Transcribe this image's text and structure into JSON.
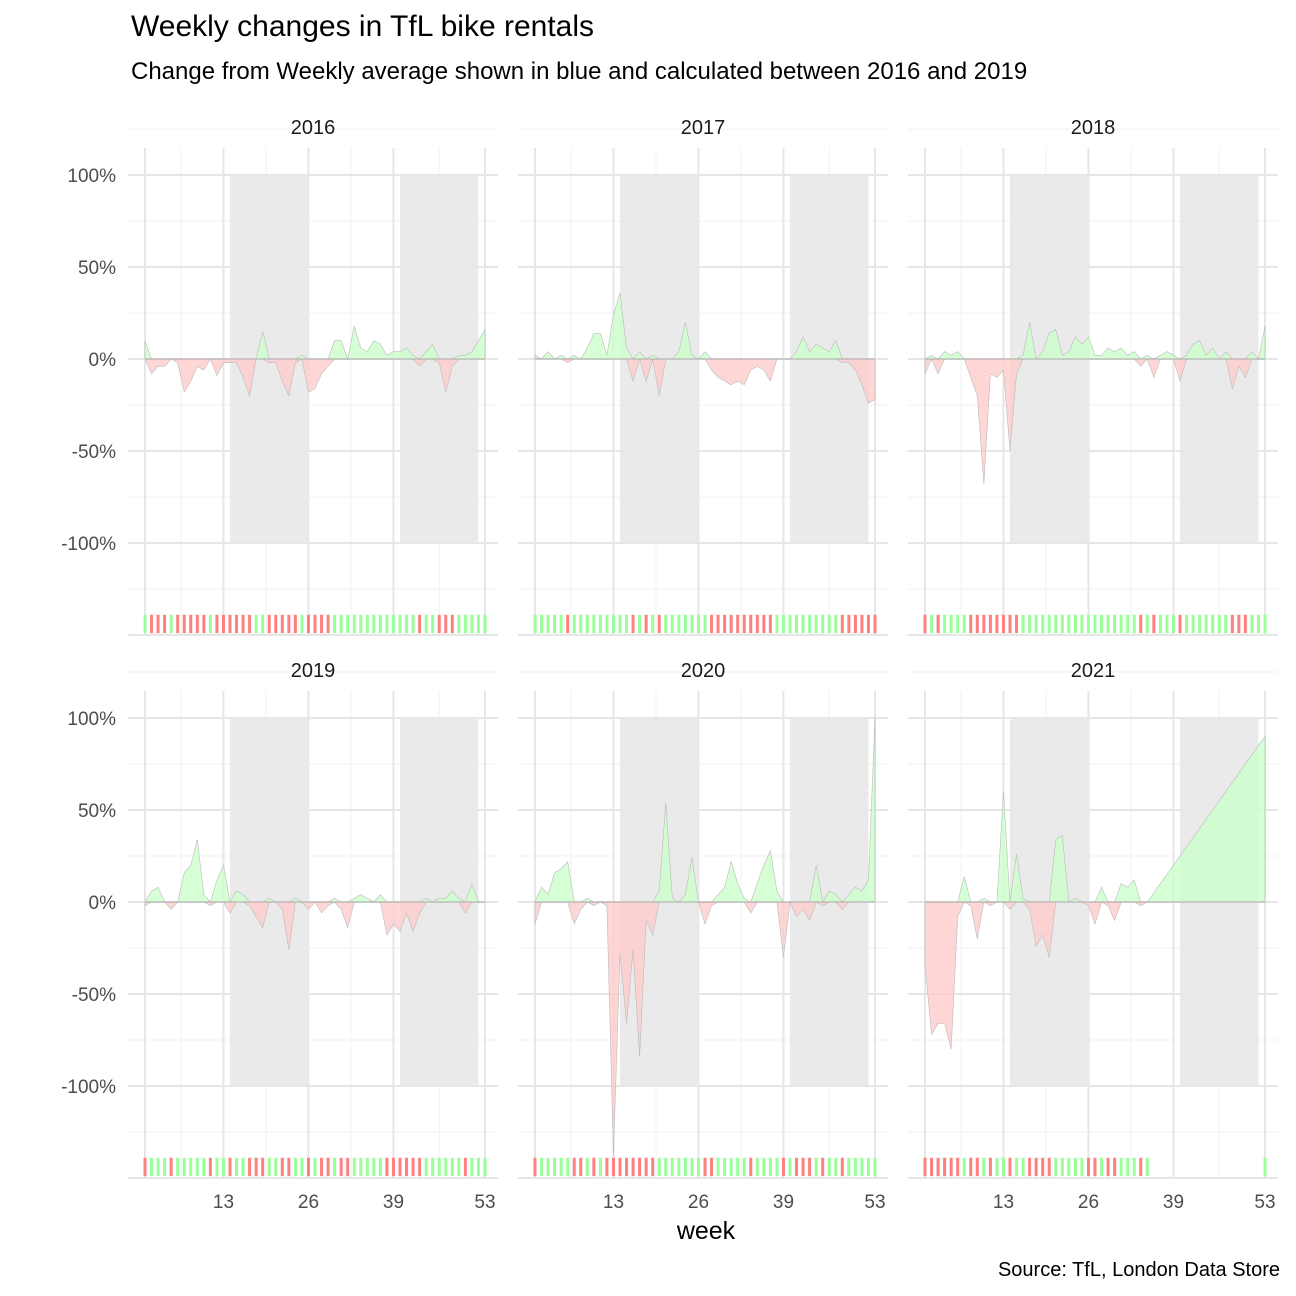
{
  "title": "Weekly changes in TfL bike rentals",
  "subtitle": "Change from Weekly average shown in blue and calculated between 2016 and 2019",
  "caption": "Source: TfL, London Data Store",
  "colors": {
    "positive_fill": "#ccffcc",
    "negative_fill": "#ffcccc",
    "positive_rug": "#99ff99",
    "negative_rug": "#ff8080",
    "shaded_quarter": "#e8e8e8",
    "grid_major": "#e6e6e6",
    "grid_minor": "#f1f1f1"
  },
  "chart_data": {
    "type": "area",
    "facet_by": "year",
    "xlabel": "week",
    "ylabel": "",
    "x_ticks": [
      13,
      26,
      39,
      53
    ],
    "y_ticks": [
      "100%",
      "50%",
      "0%",
      "-50%",
      "-100%"
    ],
    "y_tick_values": [
      1.0,
      0.5,
      0.0,
      -0.5,
      -1.0
    ],
    "xlim": [
      1,
      53
    ],
    "ylim": [
      -1.4,
      1.1
    ],
    "shaded_week_ranges": [
      [
        14,
        26
      ],
      [
        40,
        52
      ]
    ],
    "panels": [
      {
        "year": "2016",
        "weeks": [
          1,
          2,
          3,
          4,
          5,
          6,
          7,
          8,
          9,
          10,
          11,
          12,
          13,
          14,
          15,
          16,
          17,
          18,
          19,
          20,
          21,
          22,
          23,
          24,
          25,
          26,
          27,
          28,
          29,
          30,
          31,
          32,
          33,
          34,
          35,
          36,
          37,
          38,
          39,
          40,
          41,
          42,
          43,
          44,
          45,
          46,
          47,
          48,
          49,
          50,
          51,
          52,
          53
        ],
        "values": [
          0.1,
          -0.08,
          -0.04,
          -0.04,
          0.0,
          -0.02,
          -0.18,
          -0.12,
          -0.04,
          -0.06,
          0.0,
          -0.09,
          -0.02,
          -0.02,
          -0.02,
          -0.1,
          -0.2,
          0.0,
          0.15,
          -0.02,
          -0.02,
          -0.12,
          -0.2,
          -0.02,
          0.02,
          -0.18,
          -0.16,
          -0.08,
          -0.04,
          0.1,
          0.1,
          0.0,
          0.18,
          0.06,
          0.04,
          0.1,
          0.08,
          0.02,
          0.04,
          0.04,
          0.06,
          0.02,
          -0.04,
          0.04,
          0.08,
          -0.02,
          -0.18,
          -0.04,
          0.02,
          0.02,
          0.04,
          0.1,
          0.16
        ]
      },
      {
        "year": "2017",
        "weeks": [
          1,
          2,
          3,
          4,
          5,
          6,
          7,
          8,
          9,
          10,
          11,
          12,
          13,
          14,
          15,
          16,
          17,
          18,
          19,
          20,
          21,
          22,
          23,
          24,
          25,
          26,
          27,
          28,
          29,
          30,
          31,
          32,
          33,
          34,
          35,
          36,
          37,
          38,
          39,
          40,
          41,
          42,
          43,
          44,
          45,
          46,
          47,
          48,
          49,
          50,
          51,
          52,
          53
        ],
        "values": [
          0.02,
          0.0,
          0.04,
          0.0,
          0.02,
          -0.02,
          0.02,
          0.0,
          0.06,
          0.14,
          0.14,
          0.02,
          0.24,
          0.36,
          0.06,
          -0.12,
          0.04,
          -0.12,
          0.02,
          -0.2,
          0.0,
          0.0,
          0.04,
          0.2,
          0.02,
          0.0,
          0.04,
          -0.06,
          -0.1,
          -0.12,
          -0.14,
          -0.12,
          -0.14,
          -0.06,
          -0.04,
          -0.06,
          -0.12,
          0.0,
          0.0,
          0.0,
          0.04,
          0.12,
          0.04,
          0.08,
          0.06,
          0.04,
          0.1,
          -0.02,
          -0.02,
          -0.06,
          -0.14,
          -0.24,
          -0.22
        ]
      },
      {
        "year": "2018",
        "weeks": [
          1,
          2,
          3,
          4,
          5,
          6,
          7,
          8,
          9,
          10,
          11,
          12,
          13,
          14,
          15,
          16,
          17,
          18,
          19,
          20,
          21,
          22,
          23,
          24,
          25,
          26,
          27,
          28,
          29,
          30,
          31,
          32,
          33,
          34,
          35,
          36,
          37,
          38,
          39,
          40,
          41,
          42,
          43,
          44,
          45,
          46,
          47,
          48,
          49,
          50,
          51,
          52,
          53
        ],
        "values": [
          -0.08,
          0.02,
          -0.08,
          0.04,
          0.02,
          0.04,
          0.0,
          -0.1,
          -0.2,
          -0.68,
          -0.08,
          -0.1,
          -0.06,
          -0.5,
          -0.08,
          0.02,
          0.2,
          0.0,
          0.04,
          0.14,
          0.16,
          0.02,
          0.04,
          0.12,
          0.08,
          0.12,
          0.02,
          0.02,
          0.06,
          0.04,
          0.06,
          0.02,
          0.04,
          -0.04,
          0.02,
          -0.1,
          0.02,
          0.04,
          0.02,
          -0.12,
          0.02,
          0.08,
          0.1,
          0.02,
          0.06,
          0.0,
          0.04,
          -0.16,
          -0.04,
          -0.1,
          0.04,
          0.0,
          0.18
        ]
      },
      {
        "year": "2019",
        "weeks": [
          1,
          2,
          3,
          4,
          5,
          6,
          7,
          8,
          9,
          10,
          11,
          12,
          13,
          14,
          15,
          16,
          17,
          18,
          19,
          20,
          21,
          22,
          23,
          24,
          25,
          26,
          27,
          28,
          29,
          30,
          31,
          32,
          33,
          34,
          35,
          36,
          37,
          38,
          39,
          40,
          41,
          42,
          43,
          44,
          45,
          46,
          47,
          48,
          49,
          50,
          51,
          52,
          53
        ],
        "values": [
          -0.02,
          0.06,
          0.08,
          0.0,
          -0.04,
          0.0,
          0.16,
          0.2,
          0.34,
          0.04,
          -0.02,
          0.12,
          0.2,
          -0.06,
          0.06,
          0.04,
          -0.02,
          -0.08,
          -0.14,
          0.02,
          0.0,
          -0.04,
          -0.26,
          0.02,
          0.0,
          -0.04,
          0.0,
          -0.06,
          -0.02,
          0.02,
          -0.04,
          -0.14,
          0.02,
          0.04,
          0.02,
          0.0,
          0.04,
          -0.18,
          -0.12,
          -0.16,
          -0.06,
          -0.16,
          -0.06,
          0.02,
          0.0,
          0.02,
          0.02,
          0.06,
          0.02,
          -0.06,
          0.1,
          0.0,
          0.0
        ]
      },
      {
        "year": "2020",
        "weeks": [
          1,
          2,
          3,
          4,
          5,
          6,
          7,
          8,
          9,
          10,
          11,
          12,
          13,
          14,
          15,
          16,
          17,
          18,
          19,
          20,
          21,
          22,
          23,
          24,
          25,
          26,
          27,
          28,
          29,
          30,
          31,
          32,
          33,
          34,
          35,
          36,
          37,
          38,
          39,
          40,
          41,
          42,
          43,
          44,
          45,
          46,
          47,
          48,
          49,
          50,
          51,
          52,
          53
        ],
        "values": [
          -0.12,
          0.08,
          0.04,
          0.16,
          0.18,
          0.22,
          -0.12,
          -0.04,
          0.02,
          -0.02,
          0.0,
          -0.02,
          -1.38,
          -0.28,
          -0.66,
          -0.26,
          -0.84,
          -0.1,
          -0.18,
          0.06,
          0.54,
          0.02,
          0.0,
          0.04,
          0.24,
          0.0,
          -0.12,
          -0.02,
          0.04,
          0.08,
          0.22,
          0.1,
          0.02,
          -0.06,
          0.1,
          0.2,
          0.28,
          0.06,
          -0.3,
          0.0,
          -0.08,
          -0.04,
          -0.1,
          0.2,
          -0.02,
          0.06,
          0.04,
          -0.04,
          0.04,
          0.08,
          0.06,
          0.12,
          1.0
        ]
      },
      {
        "year": "2021",
        "weeks": [
          1,
          2,
          3,
          4,
          5,
          6,
          7,
          8,
          9,
          10,
          11,
          12,
          13,
          14,
          15,
          16,
          17,
          18,
          19,
          20,
          21,
          22,
          23,
          24,
          25,
          26,
          27,
          28,
          29,
          30,
          31,
          32,
          33,
          34,
          35,
          53
        ],
        "values": [
          -0.34,
          -0.72,
          -0.66,
          -0.66,
          -0.8,
          -0.08,
          0.14,
          -0.02,
          -0.2,
          0.02,
          -0.02,
          0.0,
          0.6,
          -0.04,
          0.26,
          0.02,
          -0.04,
          -0.24,
          -0.18,
          -0.3,
          0.34,
          0.36,
          0.0,
          0.02,
          0.0,
          -0.02,
          -0.12,
          0.08,
          -0.02,
          -0.1,
          0.1,
          0.08,
          0.12,
          -0.02,
          0.0,
          0.9
        ]
      }
    ]
  }
}
